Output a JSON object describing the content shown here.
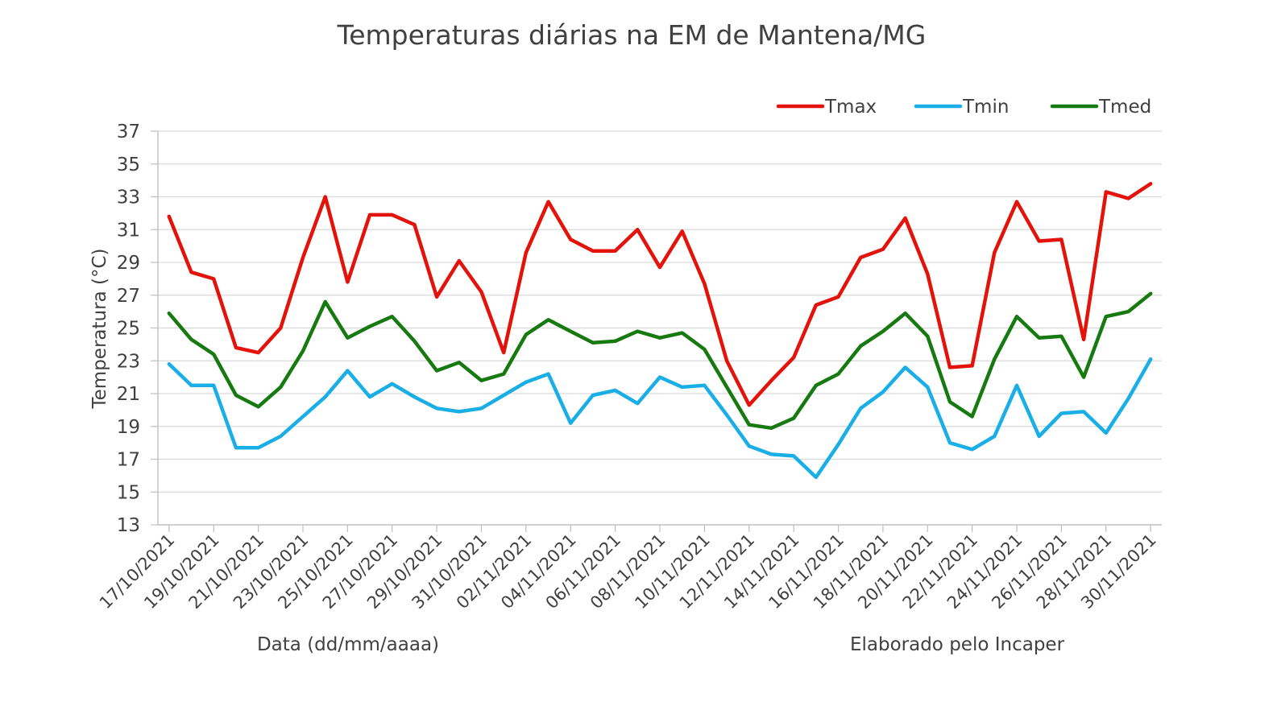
{
  "chart_data": {
    "type": "line",
    "title": "Temperaturas diárias na EM de Mantena/MG",
    "xlabel": "Data (dd/mm/aaaa)",
    "ylabel": "Temperatura (°C)",
    "note": "Elaborado pelo Incaper",
    "ylim": [
      13,
      37
    ],
    "yticks": [
      13,
      15,
      17,
      19,
      21,
      23,
      25,
      27,
      29,
      31,
      33,
      35,
      37
    ],
    "grid": true,
    "legend_position": "top-right",
    "x": [
      "17/10/2021",
      "18/10/2021",
      "19/10/2021",
      "20/10/2021",
      "21/10/2021",
      "22/10/2021",
      "23/10/2021",
      "24/10/2021",
      "25/10/2021",
      "26/10/2021",
      "27/10/2021",
      "28/10/2021",
      "29/10/2021",
      "30/10/2021",
      "31/10/2021",
      "01/11/2021",
      "02/11/2021",
      "03/11/2021",
      "04/11/2021",
      "05/11/2021",
      "06/11/2021",
      "07/11/2021",
      "08/11/2021",
      "09/11/2021",
      "10/11/2021",
      "11/11/2021",
      "12/11/2021",
      "13/11/2021",
      "14/11/2021",
      "15/11/2021",
      "16/11/2021",
      "17/11/2021",
      "18/11/2021",
      "19/11/2021",
      "20/11/2021",
      "21/11/2021",
      "22/11/2021",
      "23/11/2021",
      "24/11/2021",
      "25/11/2021",
      "26/11/2021",
      "27/11/2021",
      "28/11/2021",
      "29/11/2021",
      "30/11/2021"
    ],
    "xtick_labels": [
      "17/10/2021",
      "19/10/2021",
      "21/10/2021",
      "23/10/2021",
      "25/10/2021",
      "27/10/2021",
      "29/10/2021",
      "31/10/2021",
      "02/11/2021",
      "04/11/2021",
      "06/11/2021",
      "08/11/2021",
      "10/11/2021",
      "12/11/2021",
      "14/11/2021",
      "16/11/2021",
      "18/11/2021",
      "20/11/2021",
      "22/11/2021",
      "24/11/2021",
      "26/11/2021",
      "28/11/2021",
      "30/11/2021"
    ],
    "series": [
      {
        "name": "Tmax",
        "color": "#e3120b",
        "values": [
          31.8,
          28.4,
          28.0,
          23.8,
          23.5,
          25.0,
          29.3,
          33.0,
          27.8,
          31.9,
          31.9,
          31.3,
          26.9,
          29.1,
          27.2,
          23.5,
          29.6,
          32.7,
          30.4,
          29.7,
          29.7,
          31.0,
          28.7,
          30.9,
          27.7,
          23.0,
          20.3,
          21.8,
          23.2,
          26.4,
          26.9,
          29.3,
          29.8,
          31.7,
          28.3,
          22.6,
          22.7,
          29.6,
          32.7,
          30.3,
          30.4,
          24.3,
          33.3,
          32.9,
          33.8
        ]
      },
      {
        "name": "Tmin",
        "color": "#1aaee6",
        "values": [
          22.8,
          21.5,
          21.5,
          17.7,
          17.7,
          18.4,
          19.6,
          20.8,
          22.4,
          20.8,
          21.6,
          20.8,
          20.1,
          19.9,
          20.1,
          20.9,
          21.7,
          22.2,
          19.2,
          20.9,
          21.2,
          20.4,
          22.0,
          21.4,
          21.5,
          19.7,
          17.8,
          17.3,
          17.2,
          15.9,
          17.9,
          20.1,
          21.1,
          22.6,
          21.4,
          18.0,
          17.6,
          18.4,
          21.5,
          18.4,
          19.8,
          19.9,
          18.6,
          20.7,
          23.1
        ]
      },
      {
        "name": "Tmed",
        "color": "#177a10",
        "values": [
          25.9,
          24.3,
          23.4,
          20.9,
          20.2,
          21.4,
          23.6,
          26.6,
          24.4,
          25.1,
          25.7,
          24.2,
          22.4,
          22.9,
          21.8,
          22.2,
          24.6,
          25.5,
          24.8,
          24.1,
          24.2,
          24.8,
          24.4,
          24.7,
          23.7,
          21.4,
          19.1,
          18.9,
          19.5,
          21.5,
          22.2,
          23.9,
          24.8,
          25.9,
          24.5,
          20.5,
          19.6,
          23.1,
          25.7,
          24.4,
          24.5,
          22.0,
          25.7,
          26.0,
          27.1
        ]
      }
    ]
  }
}
